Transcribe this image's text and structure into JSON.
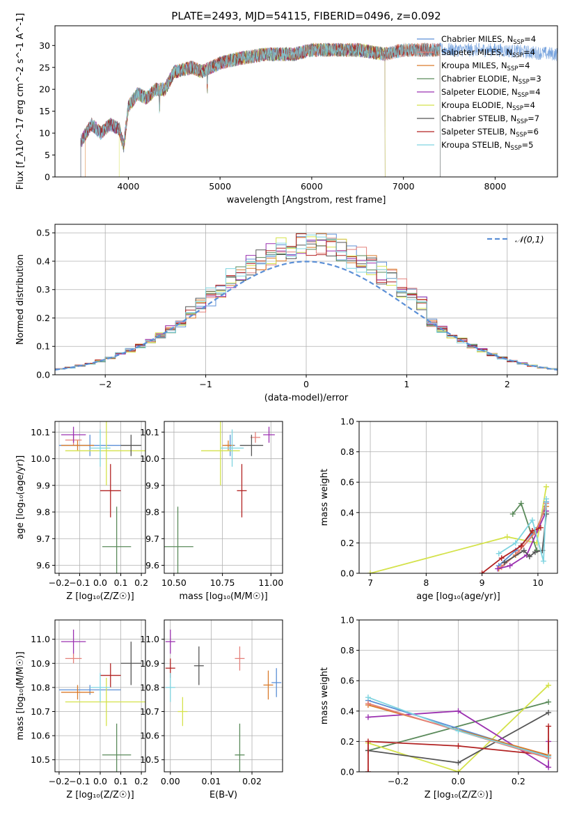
{
  "chart_data": [
    {
      "type": "line",
      "id": "spec",
      "title": "PLATE=2493, MJD=54115, FIBERID=0496, z=0.092",
      "xlabel": "wavelength [Angstrom, rest frame]",
      "ylabel": "Flux [f_λ10^-17 erg cm^-2 s^-1 A^-1]",
      "xlim": [
        3200,
        8680
      ],
      "ylim": [
        0,
        34.5
      ],
      "xticks": [
        4000,
        5000,
        6000,
        7000,
        8000
      ],
      "yticks": [
        0,
        5,
        10,
        15,
        20,
        25,
        30
      ],
      "xticklabels": [
        "4000",
        "5000",
        "6000",
        "7000",
        "8000"
      ],
      "yticklabels": [
        "0",
        "5",
        "10",
        "15",
        "20",
        "25",
        "30"
      ],
      "legend": "top-right",
      "series": [
        {
          "key": "cm",
          "name": "Chabrier MILES, N",
          "sub": "SSP",
          "tail": "=4",
          "color": "#5b8fd6",
          "start": 3480,
          "end": 8680
        },
        {
          "key": "sm",
          "name": "Salpeter MILES, N",
          "sub": "SSP",
          "tail": "=4",
          "color": "#e4807a",
          "start": 3480,
          "end": 7400
        },
        {
          "key": "km",
          "name": "Kroupa MILES, N",
          "sub": "SSP",
          "tail": "=4",
          "color": "#d97a2a",
          "start": 3530,
          "end": 7400
        },
        {
          "key": "ce",
          "name": "Chabrier ELODIE, N",
          "sub": "SSP",
          "tail": "=3",
          "color": "#5a8a5a",
          "start": 3480,
          "end": 6800
        },
        {
          "key": "se",
          "name": "Salpeter ELODIE, N",
          "sub": "SSP",
          "tail": "=4",
          "color": "#9b30b0",
          "start": 3480,
          "end": 6800
        },
        {
          "key": "ke",
          "name": "Kroupa ELODIE, N",
          "sub": "SSP",
          "tail": "=4",
          "color": "#d4e24a",
          "start": 3900,
          "end": 6800
        },
        {
          "key": "cs",
          "name": "Chabrier STELIB, N",
          "sub": "SSP",
          "tail": "=7",
          "color": "#555555",
          "start": 3480,
          "end": 7400
        },
        {
          "key": "ss",
          "name": "Salpeter STELIB, N",
          "sub": "SSP",
          "tail": "=6",
          "color": "#b22222",
          "start": 3480,
          "end": 7400
        },
        {
          "key": "ks",
          "name": "Kroupa STELIB, N",
          "sub": "SSP",
          "tail": "=5",
          "color": "#7fd4e0",
          "start": 3480,
          "end": 7400
        }
      ],
      "spectrum_anchors": [
        [
          3480,
          8
        ],
        [
          3600,
          12
        ],
        [
          3700,
          10
        ],
        [
          3800,
          12
        ],
        [
          3900,
          11
        ],
        [
          3950,
          7
        ],
        [
          4000,
          16
        ],
        [
          4100,
          19
        ],
        [
          4200,
          18
        ],
        [
          4300,
          20
        ],
        [
          4400,
          20
        ],
        [
          4500,
          24
        ],
        [
          4700,
          25
        ],
        [
          4800,
          24
        ],
        [
          5000,
          26
        ],
        [
          5200,
          27
        ],
        [
          5500,
          28
        ],
        [
          5800,
          28
        ],
        [
          6000,
          29
        ],
        [
          6500,
          29
        ],
        [
          6800,
          28
        ],
        [
          7000,
          29
        ],
        [
          7400,
          29
        ],
        [
          8000,
          29
        ],
        [
          8680,
          28
        ]
      ]
    },
    {
      "type": "histogram",
      "id": "hist",
      "xlabel": "(data-model)/error",
      "ylabel": "Normed distribution",
      "xlim": [
        -2.5,
        2.5
      ],
      "ylim": [
        0,
        0.53
      ],
      "xticks": [
        -2,
        -1,
        0,
        1,
        2
      ],
      "yticks": [
        0,
        0.1,
        0.2,
        0.3,
        0.4,
        0.5
      ],
      "xticklabels": [
        "−2",
        "−1",
        "0",
        "1",
        "2"
      ],
      "yticklabels": [
        "0.0",
        "0.1",
        "0.2",
        "0.3",
        "0.4",
        "0.5"
      ],
      "reference": {
        "name": "𝒩(0,1)",
        "color": "#5b8fd6",
        "legend": "top-right"
      },
      "bin_width": 0.1
    },
    {
      "type": "scatter",
      "id": "ageZ",
      "xlabel": "Z [log₁₀(Z/Z☉)]",
      "ylabel": "age [log₁₀(age/yr)]",
      "xlim": [
        -0.22,
        0.22
      ],
      "ylim": [
        9.57,
        10.14
      ],
      "xticks": [
        -0.2,
        -0.1,
        0.0,
        0.1,
        0.2
      ],
      "xticklabels": [
        "−0.2",
        "−0.1",
        "0.0",
        "0.1",
        "0.2"
      ],
      "yticks": [
        9.6,
        9.7,
        9.8,
        9.9,
        10.0,
        10.1
      ],
      "yticklabels": [
        "9.6",
        "9.7",
        "9.8",
        "9.9",
        "10.0",
        "10.1"
      ],
      "points": [
        {
          "k": "cm",
          "x": -0.05,
          "xe": 0.15,
          "y": 10.05,
          "ye": 0.04
        },
        {
          "k": "sm",
          "x": -0.13,
          "xe": 0.04,
          "y": 10.07,
          "ye": 0.02
        },
        {
          "k": "km",
          "x": -0.11,
          "xe": 0.08,
          "y": 10.05,
          "ye": 0.01
        },
        {
          "k": "ce",
          "x": 0.08,
          "xe": 0.07,
          "y": 9.67,
          "ye": 0.15
        },
        {
          "k": "se",
          "x": -0.13,
          "xe": 0.06,
          "y": 10.09,
          "ye": 0.03
        },
        {
          "k": "ke",
          "x": 0.03,
          "xe": 0.2,
          "y": 10.03,
          "ye": 0.13
        },
        {
          "k": "cs",
          "x": 0.15,
          "xe": 0.05,
          "y": 10.05,
          "ye": 0.04
        },
        {
          "k": "ss",
          "x": 0.05,
          "xe": 0.05,
          "y": 9.88,
          "ye": 0.1
        },
        {
          "k": "ks",
          "x": 0.0,
          "xe": 0.05,
          "y": 10.04,
          "ye": 0.07
        }
      ]
    },
    {
      "type": "scatter",
      "id": "ageM",
      "xlabel": "mass [log₁₀(M/M☉)]",
      "xlim": [
        10.45,
        11.06
      ],
      "ylim": [
        9.57,
        10.14
      ],
      "xticks": [
        10.5,
        10.75,
        11.0
      ],
      "xticklabels": [
        "10.50",
        "10.75",
        "11.00"
      ],
      "yticks": [
        9.6,
        9.7,
        9.8,
        9.9,
        10.0,
        10.1
      ],
      "yticklabels": [
        "9.6",
        "9.7",
        "9.8",
        "9.9",
        "10.0",
        "10.1"
      ],
      "points": [
        {
          "k": "cm",
          "x": 10.79,
          "xe": 0.0,
          "y": 10.05,
          "ye": 0.04
        },
        {
          "k": "sm",
          "x": 10.92,
          "xe": 0.02,
          "y": 10.08,
          "ye": 0.02
        },
        {
          "k": "km",
          "x": 10.78,
          "xe": 0.03,
          "y": 10.05,
          "ye": 0.01
        },
        {
          "k": "ce",
          "x": 10.52,
          "xe": 0.08,
          "y": 9.67,
          "ye": 0.15
        },
        {
          "k": "se",
          "x": 10.99,
          "xe": 0.03,
          "y": 10.09,
          "ye": 0.03
        },
        {
          "k": "ke",
          "x": 10.74,
          "xe": 0.1,
          "y": 10.03,
          "ye": 0.13
        },
        {
          "k": "cs",
          "x": 10.9,
          "xe": 0.06,
          "y": 10.05,
          "ye": 0.04
        },
        {
          "k": "ss",
          "x": 10.85,
          "xe": 0.02,
          "y": 9.88,
          "ye": 0.1
        },
        {
          "k": "ks",
          "x": 10.8,
          "xe": 0.06,
          "y": 10.04,
          "ye": 0.07
        }
      ]
    },
    {
      "type": "line",
      "id": "mwAge",
      "xlabel": "age [log₁₀(age/yr)]",
      "ylabel": "mass weight",
      "xlim": [
        6.8,
        10.35
      ],
      "ylim": [
        0,
        1
      ],
      "xticks": [
        7,
        8,
        9,
        10
      ],
      "xticklabels": [
        "7",
        "8",
        "9",
        "10"
      ],
      "yticks": [
        0,
        0.2,
        0.4,
        0.6,
        0.8,
        1.0
      ],
      "yticklabels": [
        "0.0",
        "0.2",
        "0.4",
        "0.6",
        "0.8",
        "1.0"
      ],
      "series": [
        {
          "k": "ke",
          "x": [
            7.0,
            9.45,
            9.98,
            10.15
          ],
          "y": [
            0.0,
            0.24,
            0.2,
            0.57
          ]
        },
        {
          "k": "ce",
          "x": [
            9.55,
            9.7,
            9.98
          ],
          "y": [
            0.39,
            0.46,
            0.15
          ]
        },
        {
          "k": "cm",
          "x": [
            9.3,
            9.6,
            10.0,
            10.15
          ],
          "y": [
            0.05,
            0.15,
            0.3,
            0.47
          ]
        },
        {
          "k": "km",
          "x": [
            9.3,
            9.6,
            9.95,
            10.15
          ],
          "y": [
            0.03,
            0.12,
            0.27,
            0.44
          ]
        },
        {
          "k": "sm",
          "x": [
            9.35,
            9.65,
            9.98,
            10.15
          ],
          "y": [
            0.04,
            0.14,
            0.28,
            0.46
          ]
        },
        {
          "k": "se",
          "x": [
            9.28,
            9.5,
            9.8,
            10.15
          ],
          "y": [
            0.03,
            0.05,
            0.12,
            0.41
          ]
        },
        {
          "k": "ss",
          "x": [
            9.0,
            9.35,
            9.7,
            9.9,
            10.05
          ],
          "y": [
            0.0,
            0.1,
            0.18,
            0.28,
            0.3
          ]
        },
        {
          "k": "cs",
          "x": [
            9.4,
            9.75,
            9.85,
            9.95,
            10.08,
            10.15
          ],
          "y": [
            0.07,
            0.15,
            0.11,
            0.14,
            0.15,
            0.39
          ]
        },
        {
          "k": "ks",
          "x": [
            9.3,
            9.6,
            9.9,
            10.1,
            10.15
          ],
          "y": [
            0.13,
            0.2,
            0.35,
            0.08,
            0.49
          ]
        }
      ]
    },
    {
      "type": "scatter",
      "id": "massZ",
      "xlabel": "Z [log₁₀(Z/Z☉)]",
      "ylabel": "mass [log₁₀(M/M☉)]",
      "xlim": [
        -0.22,
        0.22
      ],
      "ylim": [
        10.45,
        11.08
      ],
      "xticks": [
        -0.2,
        -0.1,
        0.0,
        0.1,
        0.2
      ],
      "xticklabels": [
        "−0.2",
        "−0.1",
        "0.0",
        "0.1",
        "0.2"
      ],
      "yticks": [
        10.5,
        10.6,
        10.7,
        10.8,
        10.9,
        11.0
      ],
      "yticklabels": [
        "10.5",
        "10.6",
        "10.7",
        "10.8",
        "10.9",
        "11.0"
      ],
      "points": [
        {
          "k": "cm",
          "x": -0.05,
          "xe": 0.15,
          "y": 10.79,
          "ye": 0.0
        },
        {
          "k": "sm",
          "x": -0.13,
          "xe": 0.04,
          "y": 10.92,
          "ye": 0.02
        },
        {
          "k": "km",
          "x": -0.11,
          "xe": 0.08,
          "y": 10.78,
          "ye": 0.03
        },
        {
          "k": "ce",
          "x": 0.08,
          "xe": 0.07,
          "y": 10.52,
          "ye": 0.13
        },
        {
          "k": "se",
          "x": -0.13,
          "xe": 0.06,
          "y": 10.99,
          "ye": 0.05
        },
        {
          "k": "ke",
          "x": 0.03,
          "xe": 0.2,
          "y": 10.74,
          "ye": 0.1
        },
        {
          "k": "cs",
          "x": 0.15,
          "xe": 0.05,
          "y": 10.9,
          "ye": 0.09
        },
        {
          "k": "ss",
          "x": 0.05,
          "xe": 0.05,
          "y": 10.85,
          "ye": 0.05
        },
        {
          "k": "ks",
          "x": 0.0,
          "xe": 0.05,
          "y": 10.8,
          "ye": 0.06
        }
      ]
    },
    {
      "type": "scatter",
      "id": "massE",
      "xlabel": "E(B-V)",
      "xlim": [
        -0.0015,
        0.0275
      ],
      "ylim": [
        10.45,
        11.08
      ],
      "xticks": [
        0.0,
        0.01,
        0.02
      ],
      "xticklabels": [
        "0.00",
        "0.01",
        "0.02"
      ],
      "yticks": [
        10.5,
        10.6,
        10.7,
        10.8,
        10.9,
        11.0
      ],
      "yticklabels": [
        "10.5",
        "10.6",
        "10.7",
        "10.8",
        "10.9",
        "11.0"
      ],
      "points": [
        {
          "k": "cm",
          "x": 0.026,
          "xe": 0,
          "y": 10.82,
          "ye": 0.06
        },
        {
          "k": "sm",
          "x": 0.017,
          "xe": 0,
          "y": 10.92,
          "ye": 0.05
        },
        {
          "k": "km",
          "x": 0.024,
          "xe": 0,
          "y": 10.81,
          "ye": 0.06
        },
        {
          "k": "ce",
          "x": 0.017,
          "xe": 0,
          "y": 10.52,
          "ye": 0.13
        },
        {
          "k": "se",
          "x": 0.0,
          "xe": 0,
          "y": 10.99,
          "ye": 0.05
        },
        {
          "k": "ke",
          "x": 0.003,
          "xe": 0,
          "y": 10.7,
          "ye": 0.06
        },
        {
          "k": "cs",
          "x": 0.007,
          "xe": 0,
          "y": 10.89,
          "ye": 0.08
        },
        {
          "k": "ss",
          "x": 0.0,
          "xe": 0,
          "y": 10.88,
          "ye": 0.04
        },
        {
          "k": "ks",
          "x": 0.0,
          "xe": 0,
          "y": 10.8,
          "ye": 0.06
        }
      ]
    },
    {
      "type": "line",
      "id": "mwZ",
      "xlabel": "Z [log₁₀(Z/Z☉)]",
      "ylabel": "mass weight",
      "xlim": [
        -0.33,
        0.33
      ],
      "ylim": [
        0,
        1
      ],
      "xticks": [
        -0.2,
        0.0,
        0.2
      ],
      "xticklabels": [
        "−0.2",
        "0.0",
        "0.2"
      ],
      "yticks": [
        0,
        0.2,
        0.4,
        0.6,
        0.8,
        1.0
      ],
      "yticklabels": [
        "0.0",
        "0.2",
        "0.4",
        "0.6",
        "0.8",
        "1.0"
      ],
      "series": [
        {
          "k": "ce",
          "x": [
            -0.3,
            0.3
          ],
          "y": [
            0.14,
            0.46
          ]
        },
        {
          "k": "ke",
          "x": [
            -0.3,
            0.0,
            0.3
          ],
          "y": [
            0.19,
            0.0,
            0.57
          ]
        },
        {
          "k": "cs",
          "x": [
            -0.3,
            0.0,
            0.3
          ],
          "y": [
            0.14,
            0.06,
            0.39
          ]
        },
        {
          "k": "se",
          "x": [
            -0.3,
            0.0,
            0.3,
            0.3
          ],
          "y": [
            0.36,
            0.4,
            0.03,
            0.2
          ]
        },
        {
          "k": "ss",
          "x": [
            -0.3,
            -0.3,
            0.0,
            0.3,
            0.3
          ],
          "y": [
            0.0,
            0.2,
            0.17,
            0.11,
            0.3
          ]
        },
        {
          "k": "cm",
          "x": [
            -0.3,
            0.3
          ],
          "y": [
            0.47,
            0.1
          ]
        },
        {
          "k": "km",
          "x": [
            -0.3,
            0.3
          ],
          "y": [
            0.44,
            0.11
          ]
        },
        {
          "k": "sm",
          "x": [
            -0.3,
            0.3
          ],
          "y": [
            0.45,
            0.09
          ]
        },
        {
          "k": "ks",
          "x": [
            -0.3,
            0.0,
            0.3
          ],
          "y": [
            0.49,
            0.27,
            0.1
          ]
        }
      ]
    }
  ]
}
